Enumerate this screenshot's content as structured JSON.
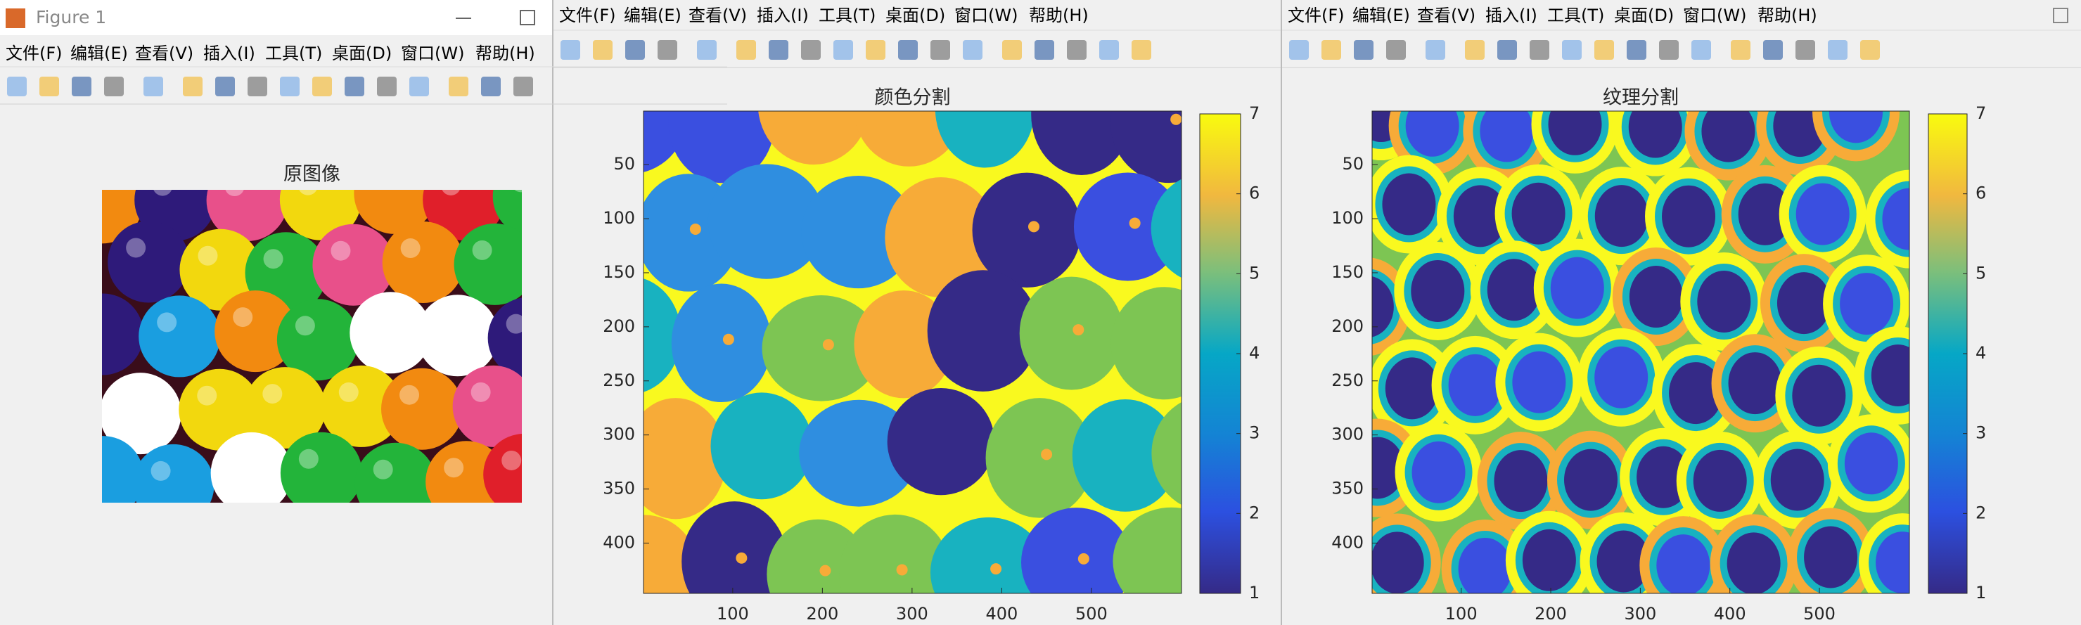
{
  "windows": [
    {
      "title": "Figure 1",
      "menus": [
        "文件(F)",
        "编辑(E)",
        "查看(V)",
        "插入(I)",
        "工具(T)",
        "桌面(D)",
        "窗口(W)",
        "帮助(H)"
      ],
      "axes": {
        "title": "原图像"
      }
    },
    {
      "menus": [
        "文件(F)",
        "编辑(E)",
        "查看(V)",
        "插入(I)",
        "工具(T)",
        "桌面(D)",
        "窗口(W)",
        "帮助(H)"
      ],
      "axes": {
        "title": "颜色分割",
        "xlim": [
          0.5,
          600.5
        ],
        "ylim": [
          0.5,
          446.5
        ],
        "xticks": [
          100,
          200,
          300,
          400,
          500
        ],
        "yticks": [
          50,
          100,
          150,
          200,
          250,
          300,
          350,
          400
        ],
        "clim": [
          1,
          7
        ],
        "cticks": [
          1,
          2,
          3,
          4,
          5,
          6,
          7
        ]
      }
    },
    {
      "menus": [
        "文件(F)",
        "编辑(E)",
        "查看(V)",
        "插入(I)",
        "工具(T)",
        "桌面(D)",
        "窗口(W)",
        "帮助(H)"
      ],
      "axes": {
        "title": "纹理分割",
        "xlim": [
          0.5,
          600.5
        ],
        "ylim": [
          0.5,
          446.5
        ],
        "xticks": [
          100,
          200,
          300,
          400,
          500
        ],
        "yticks": [
          50,
          100,
          150,
          200,
          250,
          300,
          350,
          400
        ],
        "clim": [
          1,
          7
        ],
        "cticks": [
          1,
          2,
          3,
          4,
          5,
          6,
          7
        ]
      }
    }
  ]
}
